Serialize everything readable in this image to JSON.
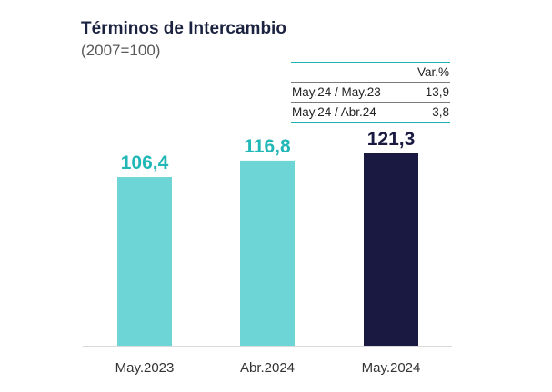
{
  "header": {
    "title": "Términos de Intercambio",
    "subtitle": "(2007=100)"
  },
  "variation_table": {
    "header": "Var.%",
    "rows": [
      {
        "label": "May.24 / May.23",
        "value": "13,9"
      },
      {
        "label": "May.24 / Abr.24",
        "value": "3,8"
      }
    ]
  },
  "chart_data": {
    "type": "bar",
    "title": "Términos de Intercambio",
    "subtitle": "(2007=100)",
    "categories": [
      "May.2023",
      "Abr.2024",
      "May.2024"
    ],
    "values": [
      106.4,
      116.8,
      121.3
    ],
    "value_labels": [
      "106,4",
      "116,8",
      "121,3"
    ],
    "bar_colors": [
      "#6dd5d6",
      "#6dd5d6",
      "#191942"
    ],
    "label_colors": [
      "#20b7b6",
      "#20b7b6",
      "#191942"
    ],
    "xlabel": "",
    "ylabel": "",
    "grid": false,
    "legend": "none"
  }
}
